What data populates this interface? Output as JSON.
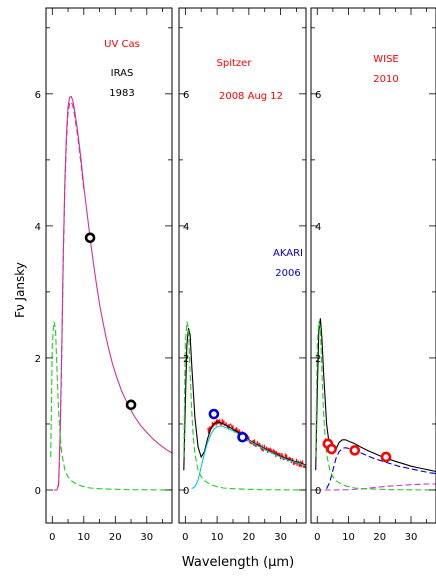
{
  "chart_data": {
    "type": "line",
    "xlabel": "Wavelength (μm)",
    "ylabel": "Fν Jansky",
    "xlim": [
      -2,
      38
    ],
    "ylim": [
      -0.5,
      7.3
    ],
    "x_ticks": [
      "0",
      "10",
      "20",
      "30"
    ],
    "y_ticks": [
      "0",
      "2",
      "4",
      "6"
    ],
    "panels": [
      {
        "annotations": [
          {
            "text": "UV Cas",
            "color": "#ff0000"
          },
          {
            "text": "IRAS",
            "color": "#000000"
          },
          {
            "text": "1983",
            "color": "#000000"
          }
        ],
        "points": {
          "color": "#000000",
          "x": [
            12,
            25
          ],
          "y": [
            3.82,
            1.29
          ]
        },
        "series": [
          {
            "style": "solid",
            "color": "#cc3399",
            "x": [
              0.5,
              1,
              1.5,
              2,
              2.5,
              3,
              3.5,
              4,
              4.5,
              5,
              5.5,
              6,
              6.5,
              7,
              8,
              9,
              10,
              11,
              12,
              13,
              14,
              15,
              16,
              17,
              18,
              19,
              20,
              22,
              24,
              26,
              28,
              30,
              32,
              34,
              36,
              38
            ],
            "y": [
              0,
              0,
              0,
              0.1,
              0.9,
              2.2,
              3.6,
              4.7,
              5.4,
              5.8,
              5.95,
              5.96,
              5.9,
              5.78,
              5.45,
              5.05,
              4.6,
              4.2,
              3.82,
              3.45,
              3.12,
              2.82,
              2.56,
              2.33,
              2.12,
              1.93,
              1.77,
              1.5,
              1.29,
              1.12,
              0.98,
              0.87,
              0.77,
              0.69,
              0.62,
              0.56
            ]
          },
          {
            "style": "dashed",
            "color": "#cc3399",
            "x": [
              2,
              2.5,
              3,
              3.5,
              4,
              4.5,
              5,
              5.5,
              6,
              6.5,
              7,
              8,
              9,
              10
            ],
            "y": [
              0.05,
              0.8,
              2.1,
              3.5,
              4.6,
              5.3,
              5.7,
              5.85,
              5.88,
              5.82,
              5.7,
              5.38,
              4.98,
              4.55
            ]
          },
          {
            "style": "dashed",
            "color": "#22cc22",
            "x": [
              -0.5,
              0,
              0.5,
              1,
              1.5,
              2,
              2.5,
              3,
              4,
              5,
              6,
              8,
              10,
              12,
              15,
              20,
              25,
              30,
              35,
              38
            ],
            "y": [
              0.5,
              2.2,
              2.55,
              2.45,
              1.8,
              1.2,
              0.8,
              0.55,
              0.3,
              0.2,
              0.14,
              0.08,
              0.05,
              0.03,
              0.02,
              0.01,
              0.005,
              0.003,
              0.002,
              0.002
            ]
          }
        ]
      },
      {
        "annotations": [
          {
            "text": "Spitzer",
            "color": "#ff0000"
          },
          {
            "text": "2008 Aug 12",
            "color": "#ff0000"
          },
          {
            "text": "AKARI",
            "color": "#0000cc"
          },
          {
            "text": "2006",
            "color": "#0000cc"
          }
        ],
        "points": {
          "color": "#0000cc",
          "x": [
            9,
            18
          ],
          "y": [
            1.15,
            0.8
          ]
        },
        "series": [
          {
            "style": "noisy",
            "color": "#ff0000",
            "x": [
              7,
              9,
              11,
              13,
              15,
              17,
              19,
              21,
              23,
              25,
              27,
              29,
              31,
              33,
              35,
              37,
              38
            ],
            "y": [
              0.88,
              1.02,
              1.04,
              0.99,
              0.93,
              0.87,
              0.8,
              0.74,
              0.68,
              0.63,
              0.58,
              0.54,
              0.5,
              0.46,
              0.42,
              0.38,
              0.36
            ]
          },
          {
            "style": "solid",
            "color": "#000000",
            "x": [
              -0.5,
              0,
              0.5,
              1,
              1.5,
              2,
              3,
              4,
              5,
              6,
              7,
              8,
              9,
              10,
              11,
              12,
              14,
              16,
              18,
              20,
              22,
              24,
              26,
              28,
              30,
              32,
              34,
              36,
              38
            ],
            "y": [
              0.3,
              1.3,
              2.2,
              2.45,
              2.35,
              1.9,
              1.1,
              0.65,
              0.5,
              0.58,
              0.78,
              0.92,
              1.0,
              1.03,
              1.02,
              1.0,
              0.95,
              0.89,
              0.83,
              0.76,
              0.7,
              0.65,
              0.6,
              0.55,
              0.51,
              0.47,
              0.44,
              0.41,
              0.38
            ]
          },
          {
            "style": "solid",
            "color": "#00cccc",
            "x": [
              2,
              3,
              4,
              5,
              6,
              7,
              8,
              9,
              10,
              11,
              12,
              14,
              16,
              18,
              20,
              22,
              24,
              26,
              28,
              30,
              32,
              34,
              36,
              38
            ],
            "y": [
              0.02,
              0.05,
              0.15,
              0.35,
              0.55,
              0.72,
              0.84,
              0.92,
              0.96,
              0.97,
              0.96,
              0.92,
              0.87,
              0.81,
              0.75,
              0.69,
              0.64,
              0.59,
              0.54,
              0.5,
              0.46,
              0.43,
              0.4,
              0.37
            ]
          },
          {
            "style": "dashed",
            "color": "#22cc22",
            "x": [
              -0.5,
              0,
              0.5,
              1,
              1.5,
              2,
              2.5,
              3,
              4,
              5,
              6,
              8,
              10,
              12,
              15,
              20,
              25,
              30,
              35,
              38
            ],
            "y": [
              0.5,
              2.2,
              2.55,
              2.45,
              1.8,
              1.2,
              0.8,
              0.55,
              0.3,
              0.2,
              0.14,
              0.08,
              0.05,
              0.03,
              0.02,
              0.01,
              0.005,
              0.003,
              0.002,
              0.002
            ]
          }
        ]
      },
      {
        "annotations": [
          {
            "text": "WISE",
            "color": "#ff0000"
          },
          {
            "text": "2010",
            "color": "#ff0000"
          }
        ],
        "points": {
          "color": "#ff0000",
          "x": [
            3.4,
            4.6,
            12,
            22
          ],
          "y": [
            0.7,
            0.62,
            0.6,
            0.5
          ]
        },
        "series": [
          {
            "style": "solid",
            "color": "#000000",
            "x": [
              -0.5,
              0,
              0.5,
              1,
              1.5,
              2,
              3,
              4,
              5,
              6,
              7,
              8,
              9,
              10,
              12,
              14,
              16,
              18,
              20,
              22,
              24,
              26,
              28,
              30,
              32,
              34,
              36,
              38
            ],
            "y": [
              0.3,
              1.5,
              2.4,
              2.6,
              2.3,
              1.8,
              1.0,
              0.62,
              0.55,
              0.62,
              0.72,
              0.76,
              0.76,
              0.74,
              0.7,
              0.65,
              0.6,
              0.56,
              0.52,
              0.48,
              0.45,
              0.42,
              0.39,
              0.36,
              0.34,
              0.32,
              0.3,
              0.28
            ]
          },
          {
            "style": "dashed",
            "color": "#0000cc",
            "x": [
              3,
              4,
              5,
              6,
              7,
              8,
              9,
              10,
              12,
              14,
              16,
              18,
              20,
              22,
              24,
              26,
              28,
              30,
              32,
              34,
              36,
              38
            ],
            "y": [
              0.02,
              0.12,
              0.3,
              0.48,
              0.58,
              0.63,
              0.64,
              0.63,
              0.6,
              0.56,
              0.52,
              0.48,
              0.45,
              0.42,
              0.39,
              0.36,
              0.34,
              0.32,
              0.3,
              0.28,
              0.26,
              0.25
            ]
          },
          {
            "style": "dashed",
            "color": "#cc33cc",
            "x": [
              -0.5,
              5,
              10,
              15,
              20,
              25,
              30,
              35,
              38
            ],
            "y": [
              0,
              0,
              0.005,
              0.02,
              0.045,
              0.065,
              0.08,
              0.09,
              0.09
            ]
          },
          {
            "style": "dashed",
            "color": "#22cc22",
            "x": [
              -0.5,
              0,
              0.5,
              1,
              1.5,
              2,
              2.5,
              3,
              4,
              5,
              6,
              8,
              10,
              12,
              15,
              20,
              25,
              30,
              35,
              38
            ],
            "y": [
              0.5,
              2.2,
              2.55,
              2.45,
              1.8,
              1.2,
              0.8,
              0.55,
              0.3,
              0.2,
              0.14,
              0.08,
              0.05,
              0.03,
              0.02,
              0.01,
              0.005,
              0.003,
              0.002,
              0.002
            ]
          }
        ]
      }
    ]
  }
}
